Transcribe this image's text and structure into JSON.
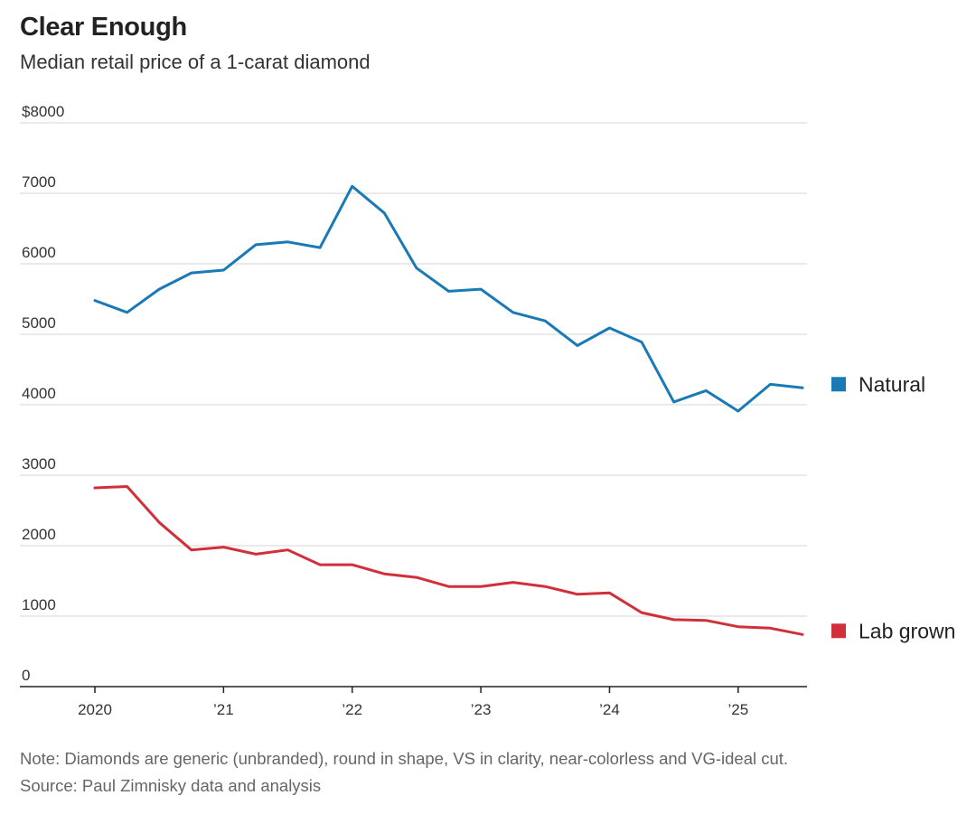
{
  "header": {
    "title": "Clear Enough",
    "subtitle": "Median retail price of a 1-carat diamond"
  },
  "footer": {
    "note": "Note: Diamonds are generic (unbranded), round in shape, VS in clarity, near-colorless and VG-ideal cut.",
    "source": "Source: Paul Zimnisky data and analysis"
  },
  "chart_data": {
    "type": "line",
    "title": "Clear Enough",
    "subtitle": "Median retail price of a 1-carat diamond",
    "xlabel": "",
    "ylabel": "",
    "ylim": [
      0,
      8000
    ],
    "grid": true,
    "legend_position": "right, at line ends",
    "y_ticks": [
      {
        "value": 8000,
        "label": "$8000"
      },
      {
        "value": 7000,
        "label": "7000"
      },
      {
        "value": 6000,
        "label": "6000"
      },
      {
        "value": 5000,
        "label": "5000"
      },
      {
        "value": 4000,
        "label": "4000"
      },
      {
        "value": 3000,
        "label": "3000"
      },
      {
        "value": 2000,
        "label": "2000"
      },
      {
        "value": 1000,
        "label": "1000"
      },
      {
        "value": 0,
        "label": "0"
      }
    ],
    "x_ticks": [
      {
        "value": 2020,
        "label": "2020"
      },
      {
        "value": 2021,
        "label": "’21"
      },
      {
        "value": 2022,
        "label": "’22"
      },
      {
        "value": 2023,
        "label": "’23"
      },
      {
        "value": 2024,
        "label": "’24"
      },
      {
        "value": 2025,
        "label": "’25"
      }
    ],
    "xlim": [
      2020,
      2025.5
    ],
    "x": [
      2020.0,
      2020.25,
      2020.5,
      2020.75,
      2021.0,
      2021.25,
      2021.5,
      2021.75,
      2022.0,
      2022.25,
      2022.5,
      2022.75,
      2023.0,
      2023.25,
      2023.5,
      2023.75,
      2024.0,
      2024.25,
      2024.5,
      2024.75,
      2025.0,
      2025.25,
      2025.5
    ],
    "series": [
      {
        "name": "Natural",
        "color": "#1a7ab5",
        "values": [
          5480,
          5310,
          5640,
          5870,
          5910,
          6270,
          6310,
          6230,
          7100,
          6720,
          5940,
          5610,
          5640,
          5310,
          5190,
          4840,
          5090,
          4890,
          4040,
          4200,
          3910,
          4290,
          4240
        ]
      },
      {
        "name": "Lab grown",
        "color": "#d0303a",
        "values": [
          2820,
          2840,
          2330,
          1940,
          1980,
          1880,
          1940,
          1730,
          1730,
          1600,
          1550,
          1420,
          1420,
          1480,
          1420,
          1310,
          1330,
          1050,
          950,
          940,
          850,
          830,
          740
        ]
      }
    ]
  }
}
